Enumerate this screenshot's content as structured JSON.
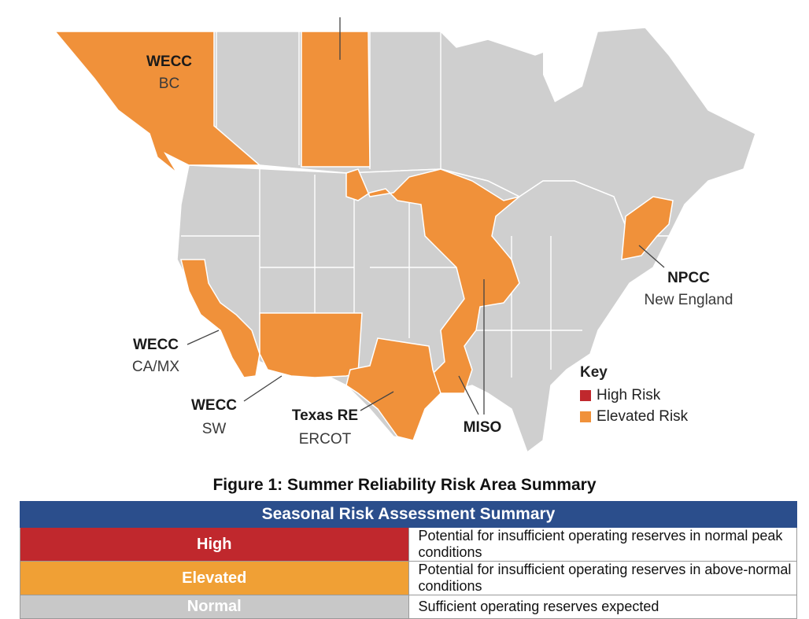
{
  "map": {
    "colors": {
      "land": "#cfcfcf",
      "border": "#ffffff",
      "elevated": "#f0913a",
      "high": "#c0282d",
      "leader": "#444444"
    },
    "regions": [
      {
        "id": "wecc-bc",
        "assessment": "Elevated"
      },
      {
        "id": "saskatchewan",
        "assessment": "Elevated"
      },
      {
        "id": "miso",
        "assessment": "Elevated"
      },
      {
        "id": "npcc-new-england",
        "assessment": "Elevated"
      },
      {
        "id": "wecc-ca-mx",
        "assessment": "Elevated"
      },
      {
        "id": "wecc-sw",
        "assessment": "Elevated"
      },
      {
        "id": "texas-re-ercot",
        "assessment": "Elevated"
      }
    ],
    "labels": {
      "wecc_bc": {
        "name": "WECC",
        "sub": "BC"
      },
      "npcc": {
        "name": "NPCC",
        "sub": "New England"
      },
      "wecc_camx": {
        "name": "WECC",
        "sub": "CA/MX"
      },
      "wecc_sw": {
        "name": "WECC",
        "sub": "SW"
      },
      "texas": {
        "name": "Texas RE",
        "sub": "ERCOT"
      },
      "miso": {
        "name": "MISO"
      }
    },
    "key": {
      "title": "Key",
      "items": [
        {
          "label": "High Risk",
          "color": "#c0282d"
        },
        {
          "label": "Elevated Risk",
          "color": "#f0913a"
        }
      ]
    }
  },
  "caption": "Figure 1: Summer Reliability Risk Area Summary",
  "table": {
    "header": "Seasonal Risk Assessment Summary",
    "rows": [
      {
        "level": "High",
        "color": "#c0282d",
        "description": "Potential for insufficient operating reserves in normal peak conditions"
      },
      {
        "level": "Elevated",
        "color": "#f0a035",
        "description": "Potential for insufficient operating reserves in above-normal conditions"
      },
      {
        "level": "Normal",
        "color": "#c8c8c8",
        "description": "Sufficient operating reserves expected"
      }
    ]
  }
}
